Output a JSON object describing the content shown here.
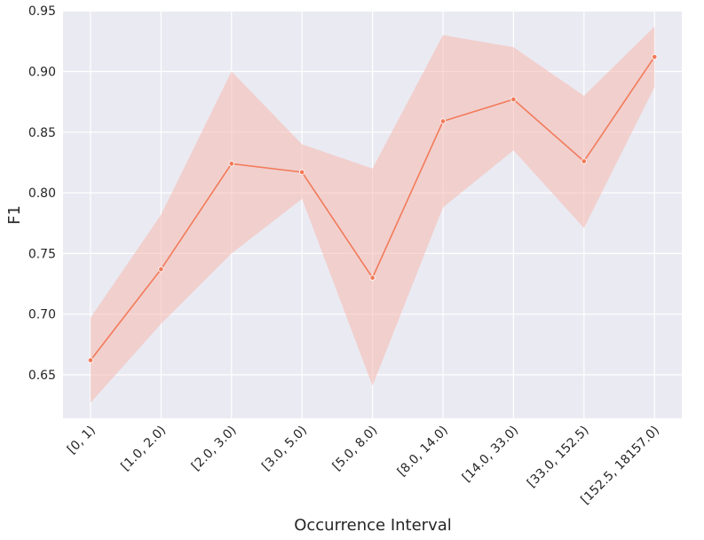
{
  "chart_data": {
    "type": "line",
    "title": "",
    "xlabel": "Occurrence Interval",
    "ylabel": "F1",
    "categories": [
      "[0, 1)",
      "[1.0, 2.0)",
      "[2.0, 3.0)",
      "[3.0, 5.0)",
      "[5.0, 8.0)",
      "[8.0, 14.0)",
      "[14.0, 33.0)",
      "[33.0, 152.5)",
      "[152.5, 18157.0)"
    ],
    "series": [
      {
        "values": [
          0.662,
          0.737,
          0.824,
          0.817,
          0.73,
          0.859,
          0.877,
          0.826,
          0.912
        ],
        "ci_lower": [
          0.627,
          0.692,
          0.75,
          0.795,
          0.641,
          0.788,
          0.835,
          0.771,
          0.887
        ],
        "ci_upper": [
          0.697,
          0.782,
          0.9,
          0.84,
          0.82,
          0.93,
          0.92,
          0.88,
          0.937
        ]
      }
    ],
    "ylim": [
      0.613,
      0.95
    ],
    "yticks": [
      0.65,
      0.7,
      0.75,
      0.8,
      0.85,
      0.9,
      0.95
    ],
    "ytick_labels": [
      "0.65",
      "0.70",
      "0.75",
      "0.80",
      "0.85",
      "0.90",
      "0.95"
    ],
    "grid": true,
    "legend": "none",
    "colors": {
      "line": "#f27b5a",
      "band": "#f5b8ae",
      "plot_background": "#eaeaf2",
      "grid": "#ffffff"
    }
  }
}
